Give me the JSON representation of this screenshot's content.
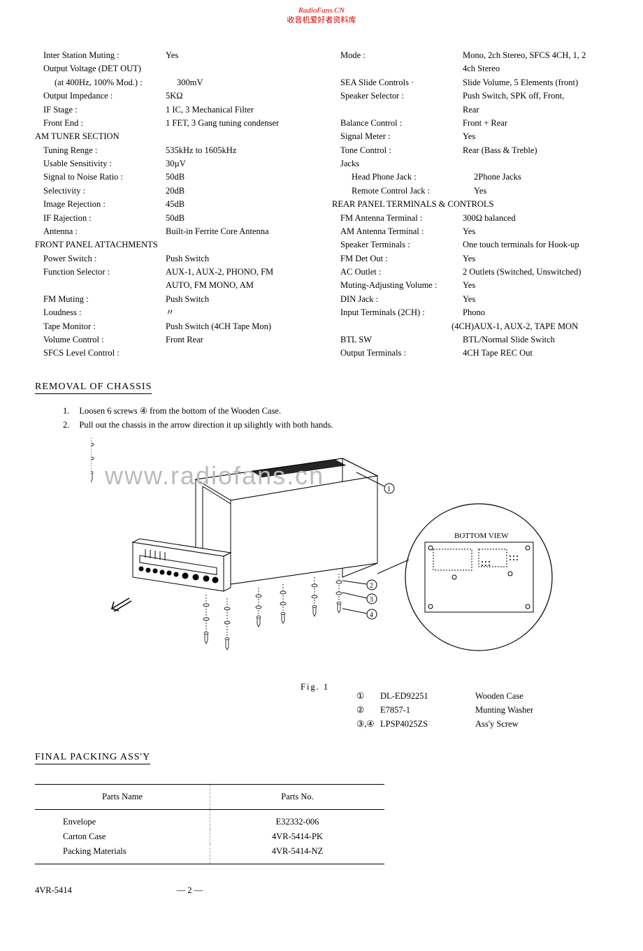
{
  "watermark": {
    "line1": "RadioFans.CN",
    "line2": "收音机爱好者资料库",
    "mid": "www.radiofans.cn"
  },
  "specs_left": [
    {
      "label": "Inter Station Muting :",
      "value": "Yes",
      "cls": ""
    },
    {
      "label": "Output Voltage (DET OUT)",
      "value": "",
      "cls": ""
    },
    {
      "label": "(at 400Hz, 100% Mod.) :",
      "value": "300mV",
      "cls": "indent"
    },
    {
      "label": "Output Impedance :",
      "value": "5KΩ",
      "cls": ""
    },
    {
      "label": "IF Stage :",
      "value": "1 IC, 3 Mechanical Filter",
      "cls": ""
    },
    {
      "label": "Front End :",
      "value": "1 FET, 3 Gang tuning condenser",
      "cls": ""
    },
    {
      "label": "AM TUNER SECTION",
      "value": "",
      "cls": "header"
    },
    {
      "label": "Tuning Renge :",
      "value": "535kHz to 1605kHz",
      "cls": ""
    },
    {
      "label": "Usable Sensitivity :",
      "value": "30µV",
      "cls": ""
    },
    {
      "label": "Signal to Noise Ratio :",
      "value": "50dB",
      "cls": ""
    },
    {
      "label": "Selectivity :",
      "value": "20dB",
      "cls": ""
    },
    {
      "label": "Image Rejection :",
      "value": "45dB",
      "cls": ""
    },
    {
      "label": "IF Rajection :",
      "value": "50dB",
      "cls": ""
    },
    {
      "label": "Antenna :",
      "value": "Built-in Ferrite Core Antenna",
      "cls": ""
    },
    {
      "label": "FRONT PANEL ATTACHMENTS",
      "value": "",
      "cls": "header"
    },
    {
      "label": "Power Switch :",
      "value": "Push Switch",
      "cls": ""
    },
    {
      "label": "Function Selector :",
      "value": "AUX-1, AUX-2, PHONO, FM",
      "cls": ""
    },
    {
      "label": "",
      "value": "AUTO, FM MONO, AM",
      "cls": ""
    },
    {
      "label": "FM Muting :",
      "value": "Push Switch",
      "cls": ""
    },
    {
      "label": "Loudness :",
      "value": "〃",
      "cls": ""
    },
    {
      "label": "Tape Monitor :",
      "value": "Push Switch (4CH Tape Mon)",
      "cls": ""
    },
    {
      "label": "Volume Control :",
      "value": "Front Rear",
      "cls": ""
    },
    {
      "label": "SFCS Level Control :",
      "value": "",
      "cls": ""
    }
  ],
  "specs_right": [
    {
      "label": "Mode :",
      "value": "Mono, 2ch Stereo, SFCS 4CH, 1, 2",
      "cls": ""
    },
    {
      "label": "",
      "value": "4ch Stereo",
      "cls": ""
    },
    {
      "label": "SEA Slide Controls ·",
      "value": "Slide Volume, 5 Elements (front)",
      "cls": ""
    },
    {
      "label": "Speaker Selector :",
      "value": "Push Switch, SPK off, Front,",
      "cls": ""
    },
    {
      "label": "",
      "value": "Rear",
      "cls": ""
    },
    {
      "label": "Balance Control :",
      "value": "Front + Rear",
      "cls": ""
    },
    {
      "label": "Signal Meter :",
      "value": "Yes",
      "cls": ""
    },
    {
      "label": "Tone Control :",
      "value": "Rear (Bass & Treble)",
      "cls": ""
    },
    {
      "label": "Jacks",
      "value": "",
      "cls": ""
    },
    {
      "label": "Head Phone Jack :",
      "value": "2Phone Jacks",
      "cls": "indent"
    },
    {
      "label": "Remote Control Jack :",
      "value": "Yes",
      "cls": "indent"
    },
    {
      "label": "REAR PANEL TERMINALS & CONTROLS",
      "value": "",
      "cls": "header"
    },
    {
      "label": "FM Antenna Terminal :",
      "value": "300Ω balanced",
      "cls": ""
    },
    {
      "label": "AM Antenna Terminal :",
      "value": "Yes",
      "cls": ""
    },
    {
      "label": "Speaker Terminals :",
      "value": "One touch terminals for Hook-up",
      "cls": ""
    },
    {
      "label": "FM Det Out :",
      "value": "Yes",
      "cls": ""
    },
    {
      "label": "AC Outlet :",
      "value": "2 Outlets (Switched, Unswitched)",
      "cls": ""
    },
    {
      "label": "Muting-Adjusting Volume :",
      "value": "Yes",
      "cls": ""
    },
    {
      "label": "DIN Jack :",
      "value": "Yes",
      "cls": ""
    },
    {
      "label": "Input Terminals (2CH) :",
      "value": "Phono",
      "cls": ""
    },
    {
      "label": "(4CH)",
      "value": "AUX-1, AUX-2, TAPE MON",
      "cls": "indent",
      "align": "right"
    },
    {
      "label": "BTL SW",
      "value": "BTL/Normal Slide Switch",
      "cls": ""
    },
    {
      "label": "Output Terminals :",
      "value": "4CH Tape REC Out",
      "cls": ""
    }
  ],
  "removal": {
    "heading": "REMOVAL OF CHASSIS",
    "steps": [
      "Loosen 6 screws ④ from the bottom of the Wooden Case.",
      "Pull out the chassis in the arrow direction it up silightly with both hands."
    ]
  },
  "figure": {
    "caption": "Fig.  1",
    "bottom_view_label": "BOTTOM  VIEW",
    "legend": [
      {
        "num": "①",
        "pn": "DL-ED92251",
        "desc": "Wooden Case"
      },
      {
        "num": "②",
        "pn": "E7857-1",
        "desc": "Munting Washer"
      },
      {
        "num": "③,④",
        "pn": "LPSP4025ZS",
        "desc": "Ass'y Screw"
      }
    ]
  },
  "packing": {
    "heading": "FINAL PACKING ASS'Y",
    "headers": [
      "Parts Name",
      "Parts No."
    ],
    "rows": [
      [
        "Envelope",
        "E32332-006"
      ],
      [
        "Carton Case",
        "4VR-5414-PK"
      ],
      [
        "Packing Materials",
        "4VR-5414-NZ"
      ]
    ]
  },
  "footer": {
    "model": "4VR-5414",
    "page": "— 2 —"
  }
}
